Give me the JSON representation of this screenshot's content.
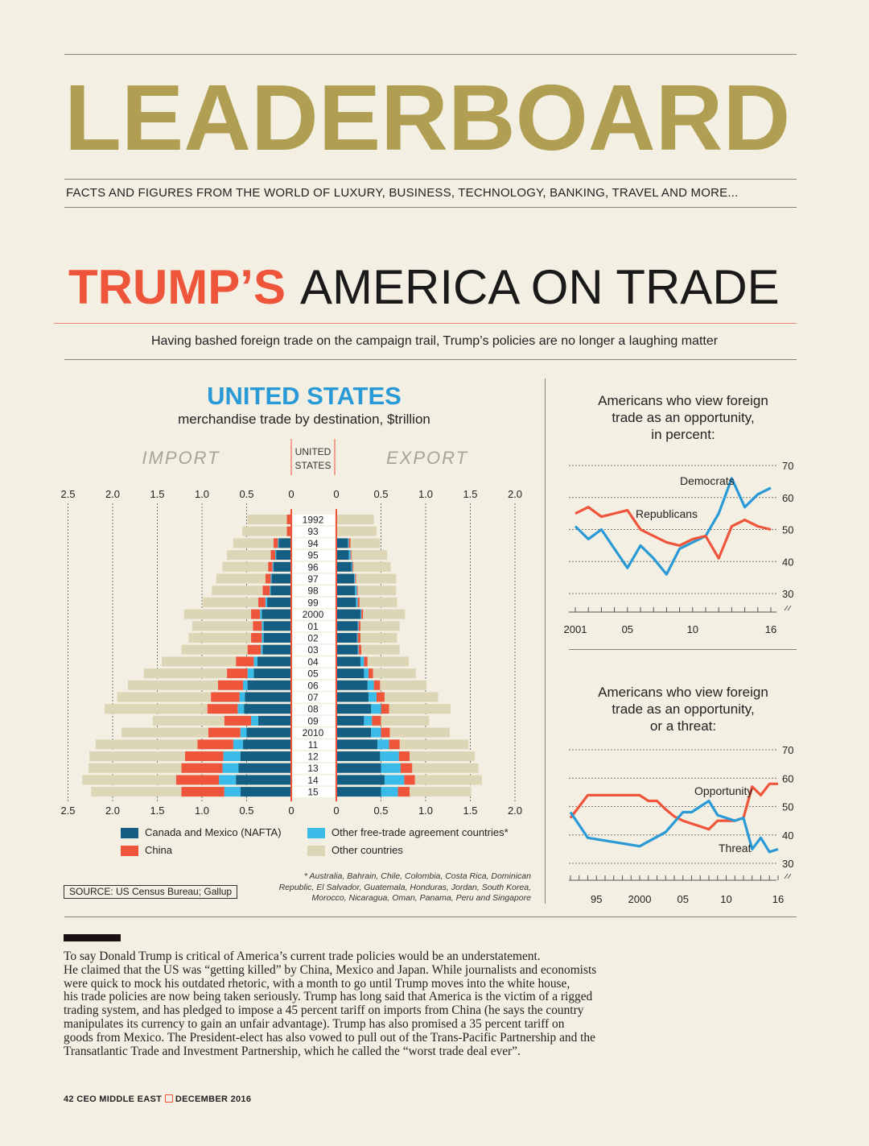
{
  "masthead": {
    "title": "LEADERBOARD",
    "tagline": "FACTS AND FIGURES FROM THE WORLD OF LUXURY, BUSINESS, TECHNOLOGY, BANKING, TRAVEL AND MORE..."
  },
  "headline": {
    "part1": "TRUMP’S",
    "part2": "AMERICA ON TRADE"
  },
  "standfirst": "Having bashed foreign trade on the campaign trail, Trump’s policies are no longer a laughing matter",
  "colors": {
    "background": "#f3efe3",
    "gold": "#b09f52",
    "red": "#ee553a",
    "blue_title": "#2a9ad6",
    "nafta": "#135e82",
    "fta": "#3bbbe8",
    "china": "#ee553a",
    "other": "#ddd6b6"
  },
  "chart_data": [
    {
      "type": "bar",
      "subtype": "butterfly-stacked",
      "title": "UNITED STATES",
      "subtitle": "merchandise trade by destination, $trillion",
      "left_label": "IMPORT",
      "right_label": "EXPORT",
      "center_label": [
        "UNITED",
        "STATES"
      ],
      "xlim": [
        0,
        2.5
      ],
      "ticks_left": [
        "2.5",
        "2.0",
        "1.5",
        "1.0",
        "0.5",
        "0"
      ],
      "ticks_right": [
        "0",
        "0.5",
        "1.0",
        "1.5",
        "2.0"
      ],
      "categories": [
        "1992",
        "93",
        "94",
        "95",
        "96",
        "97",
        "98",
        "99",
        "2000",
        "01",
        "02",
        "03",
        "04",
        "05",
        "06",
        "07",
        "08",
        "09",
        "2010",
        "11",
        "12",
        "13",
        "14",
        "15"
      ],
      "series_names": [
        "Canada and Mexico (NAFTA)",
        "Other free-trade agreement countries*",
        "China",
        "Other countries"
      ],
      "imports": {
        "nafta": [
          0,
          0,
          0.14,
          0.17,
          0.2,
          0.22,
          0.23,
          0.27,
          0.33,
          0.31,
          0.31,
          0.32,
          0.38,
          0.42,
          0.49,
          0.52,
          0.53,
          0.37,
          0.5,
          0.54,
          0.57,
          0.59,
          0.62,
          0.57
        ],
        "fta": [
          0,
          0,
          0.01,
          0.01,
          0.01,
          0.01,
          0.01,
          0.02,
          0.02,
          0.02,
          0.02,
          0.02,
          0.04,
          0.07,
          0.05,
          0.06,
          0.07,
          0.08,
          0.07,
          0.11,
          0.19,
          0.18,
          0.19,
          0.18
        ],
        "china": [
          0.05,
          0.05,
          0.05,
          0.05,
          0.05,
          0.06,
          0.08,
          0.08,
          0.1,
          0.1,
          0.12,
          0.15,
          0.2,
          0.23,
          0.28,
          0.32,
          0.34,
          0.3,
          0.36,
          0.4,
          0.43,
          0.46,
          0.48,
          0.48
        ],
        "other": [
          0.44,
          0.5,
          0.45,
          0.49,
          0.51,
          0.55,
          0.57,
          0.62,
          0.75,
          0.68,
          0.7,
          0.74,
          0.83,
          0.93,
          1.01,
          1.05,
          1.15,
          0.8,
          0.97,
          1.14,
          1.07,
          1.04,
          1.05,
          1.01
        ]
      },
      "exports": {
        "nafta": [
          0,
          0,
          0.13,
          0.14,
          0.17,
          0.2,
          0.21,
          0.22,
          0.27,
          0.24,
          0.23,
          0.24,
          0.27,
          0.31,
          0.35,
          0.36,
          0.39,
          0.31,
          0.39,
          0.46,
          0.49,
          0.5,
          0.54,
          0.5
        ],
        "fta": [
          0,
          0,
          0.01,
          0.02,
          0.01,
          0.01,
          0.02,
          0.02,
          0.01,
          0.01,
          0.01,
          0.01,
          0.04,
          0.05,
          0.07,
          0.09,
          0.11,
          0.09,
          0.11,
          0.13,
          0.21,
          0.22,
          0.22,
          0.19
        ],
        "china": [
          0,
          0,
          0.02,
          0.01,
          0.01,
          0.01,
          0.01,
          0.02,
          0.02,
          0.02,
          0.03,
          0.03,
          0.04,
          0.05,
          0.07,
          0.09,
          0.09,
          0.1,
          0.1,
          0.12,
          0.12,
          0.13,
          0.12,
          0.13
        ],
        "other": [
          0.42,
          0.45,
          0.33,
          0.4,
          0.42,
          0.45,
          0.43,
          0.42,
          0.47,
          0.44,
          0.41,
          0.43,
          0.46,
          0.48,
          0.52,
          0.6,
          0.69,
          0.54,
          0.67,
          0.77,
          0.73,
          0.74,
          0.75,
          0.69
        ]
      },
      "legend": [
        "Canada and Mexico (NAFTA)",
        "Other free-trade agreement countries*",
        "China",
        "Other countries"
      ],
      "footnote": [
        "* Australia, Bahrain, Chile, Colombia, Costa Rica, Dominican",
        "Republic, El Salvador, Guatemala, Honduras, Jordan, South Korea,",
        "Morocco, Nicaragua, Oman, Panama, Peru and Singapore"
      ],
      "grid": true
    },
    {
      "type": "line",
      "title": [
        "Americans  who view foreign",
        "trade as an opportunity,",
        "in percent:"
      ],
      "ylim": [
        30,
        70
      ],
      "yticks": [
        "70",
        "60",
        "50",
        "40",
        "30"
      ],
      "xlim": [
        2001,
        2016
      ],
      "xtick_labels": [
        {
          "x": 2001,
          "label": "2001"
        },
        {
          "x": 2005,
          "label": "05"
        },
        {
          "x": 2010,
          "label": "10"
        },
        {
          "x": 2016,
          "label": "16"
        }
      ],
      "series": [
        {
          "name": "Democrats",
          "color": "#2a9ad6",
          "x": [
            2001,
            2002,
            2003,
            2004,
            2005,
            2006,
            2007,
            2008,
            2009,
            2010,
            2011,
            2012,
            2013,
            2014,
            2015,
            2016
          ],
          "y": [
            51,
            47,
            50,
            44,
            38,
            45,
            41,
            36,
            44,
            46,
            48,
            55,
            66,
            57,
            61,
            63
          ]
        },
        {
          "name": "Republicans",
          "color": "#ee553a",
          "x": [
            2001,
            2002,
            2003,
            2004,
            2005,
            2006,
            2007,
            2008,
            2009,
            2010,
            2011,
            2012,
            2013,
            2014,
            2015,
            2016
          ],
          "y": [
            55,
            57,
            54,
            55,
            56,
            50,
            48,
            46,
            45,
            47,
            48,
            41,
            51,
            53,
            51,
            50
          ]
        }
      ],
      "grid": true
    },
    {
      "type": "line",
      "title": [
        "Americans  who view foreign",
        "trade as an opportunity,",
        "or a threat:"
      ],
      "ylim": [
        30,
        70
      ],
      "yticks": [
        "70",
        "60",
        "50",
        "40",
        "30"
      ],
      "xlim": [
        1992,
        2016
      ],
      "xtick_labels": [
        {
          "x": 1995,
          "label": "95"
        },
        {
          "x": 2000,
          "label": "2000"
        },
        {
          "x": 2005,
          "label": "05"
        },
        {
          "x": 2010,
          "label": "10"
        },
        {
          "x": 2016,
          "label": "16"
        }
      ],
      "series": [
        {
          "name": "Opportunity",
          "color": "#ee553a",
          "x": [
            1992,
            1994,
            2000,
            2001,
            2002,
            2003,
            2004,
            2005,
            2008,
            2009,
            2011,
            2012,
            2013,
            2014,
            2015,
            2016
          ],
          "y": [
            46,
            54,
            54,
            52,
            52,
            49,
            46.5,
            45,
            42,
            45,
            45,
            46,
            57,
            54,
            58,
            58
          ]
        },
        {
          "name": "Threat",
          "color": "#2a9ad6",
          "x": [
            1992,
            1994,
            2000,
            2003,
            2005,
            2006,
            2008,
            2009,
            2011,
            2012,
            2013,
            2014,
            2015,
            2016
          ],
          "y": [
            48,
            39,
            36,
            41,
            48,
            48,
            52,
            47,
            45,
            46,
            35,
            39,
            34,
            35
          ]
        }
      ],
      "grid": true
    }
  ],
  "source": "SOURCE: US Census Bureau; Gallup",
  "body_lines": [
    "To say Donald Trump is critical of America’s current trade policies would be an understatement.",
    "He claimed that the US was “getting killed” by China, Mexico and Japan. While journalists and economists",
    "were quick to mock his outdated rhetoric, with a month to go until Trump moves into the white house,",
    "his trade policies are now being taken seriously. Trump has long said that America is the victim of a rigged",
    "trading system, and has pledged to impose a 45 percent tariff on imports from China (he says the country",
    "manipulates its currency to gain an unfair advantage). Trump has also promised a 35 percent tariff on",
    "goods from Mexico. The President-elect has also vowed to pull out of the Trans-Pacific Partnership and the",
    "Transatlantic Trade and Investment Partnership, which he called the “worst trade deal ever”."
  ],
  "footer": {
    "page": "42",
    "magazine": "CEO MIDDLE EAST",
    "issue": "DECEMBER 2016"
  }
}
